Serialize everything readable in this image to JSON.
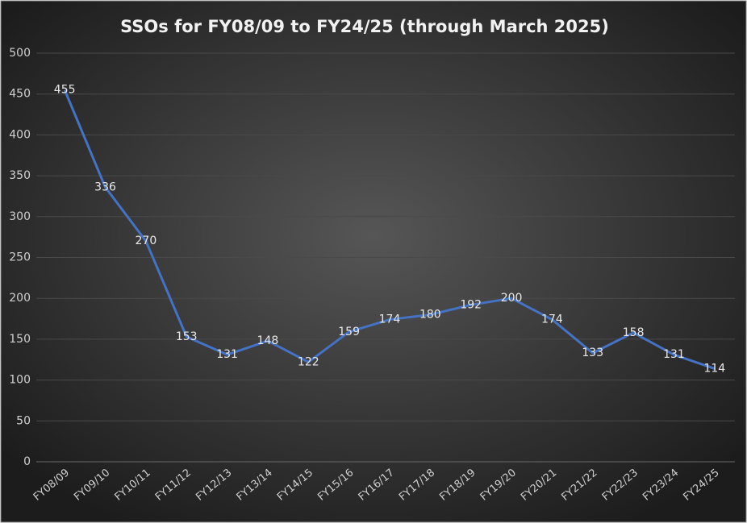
{
  "chart_data": {
    "type": "line",
    "title": "SSOs for FY08/09 to FY24/25 (through March 2025)",
    "categories": [
      "FY08/09",
      "FY09/10",
      "FY10/11",
      "FY11/12",
      "FY12/13",
      "FY13/14",
      "FY14/15",
      "FY15/16",
      "FY16/17",
      "FY17/18",
      "FY18/19",
      "FY19/20",
      "FY20/21",
      "FY21/22",
      "FY22/23",
      "FY23/24",
      "FY24/25"
    ],
    "values": [
      455,
      336,
      270,
      153,
      131,
      148,
      122,
      159,
      174,
      180,
      192,
      200,
      174,
      133,
      158,
      131,
      114
    ],
    "color": "#4472c4",
    "ylim": [
      0,
      500
    ],
    "yticks": [
      0,
      50,
      100,
      150,
      200,
      250,
      300,
      350,
      400,
      450,
      500
    ],
    "grid": true
  }
}
